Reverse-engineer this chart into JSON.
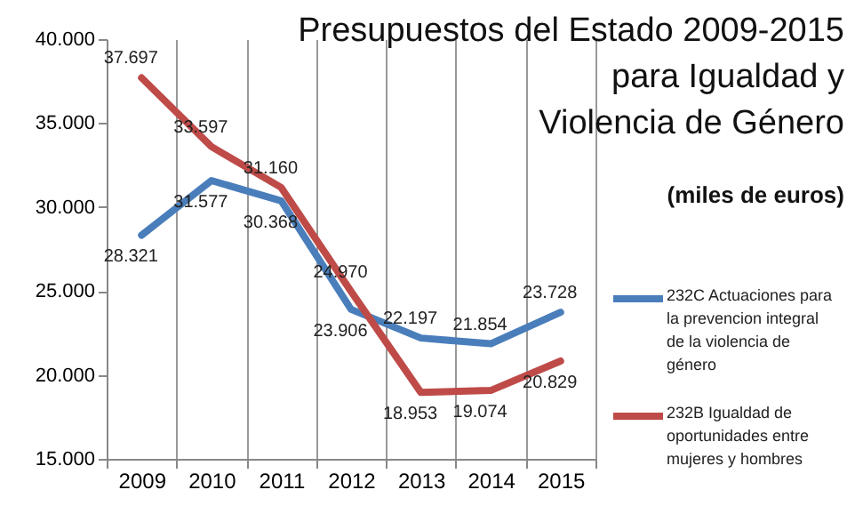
{
  "chart_data": {
    "type": "line",
    "title": "Presupuestos del Estado 2009-2015\npara Igualdad y\nViolencia de Género",
    "subtitle": "(miles de euros)",
    "categories": [
      "2009",
      "2010",
      "2011",
      "2012",
      "2013",
      "2014",
      "2015"
    ],
    "series": [
      {
        "name": "232C Actuaciones para la prevencion integral de la violencia de género",
        "color": "#4a7ebb",
        "values": [
          28321,
          31577,
          30368,
          23906,
          22197,
          21854,
          23728
        ],
        "value_labels": [
          "28.321",
          "31.577",
          "30.368",
          "23.906",
          "22.197",
          "21.854",
          "23.728"
        ]
      },
      {
        "name": "232B Igualdad de oportunidades entre mujeres y hombres",
        "color": "#be4b48",
        "values": [
          37697,
          33597,
          31160,
          24970,
          18953,
          19074,
          20829
        ],
        "value_labels": [
          "37.697",
          "33.597",
          "31.160",
          "24.970",
          "18.953",
          "19.074",
          "20.829"
        ]
      }
    ],
    "ylim": [
      15000,
      40000
    ],
    "yticks": [
      {
        "value": 15000,
        "label": "15.000"
      },
      {
        "value": 20000,
        "label": "20.000"
      },
      {
        "value": 25000,
        "label": "25.000"
      },
      {
        "value": 30000,
        "label": "30.000"
      },
      {
        "value": 35000,
        "label": "35.000"
      },
      {
        "value": 40000,
        "label": "40.000"
      }
    ],
    "grid": "x",
    "legend": "right",
    "marker": "none",
    "line_style": "solid"
  }
}
